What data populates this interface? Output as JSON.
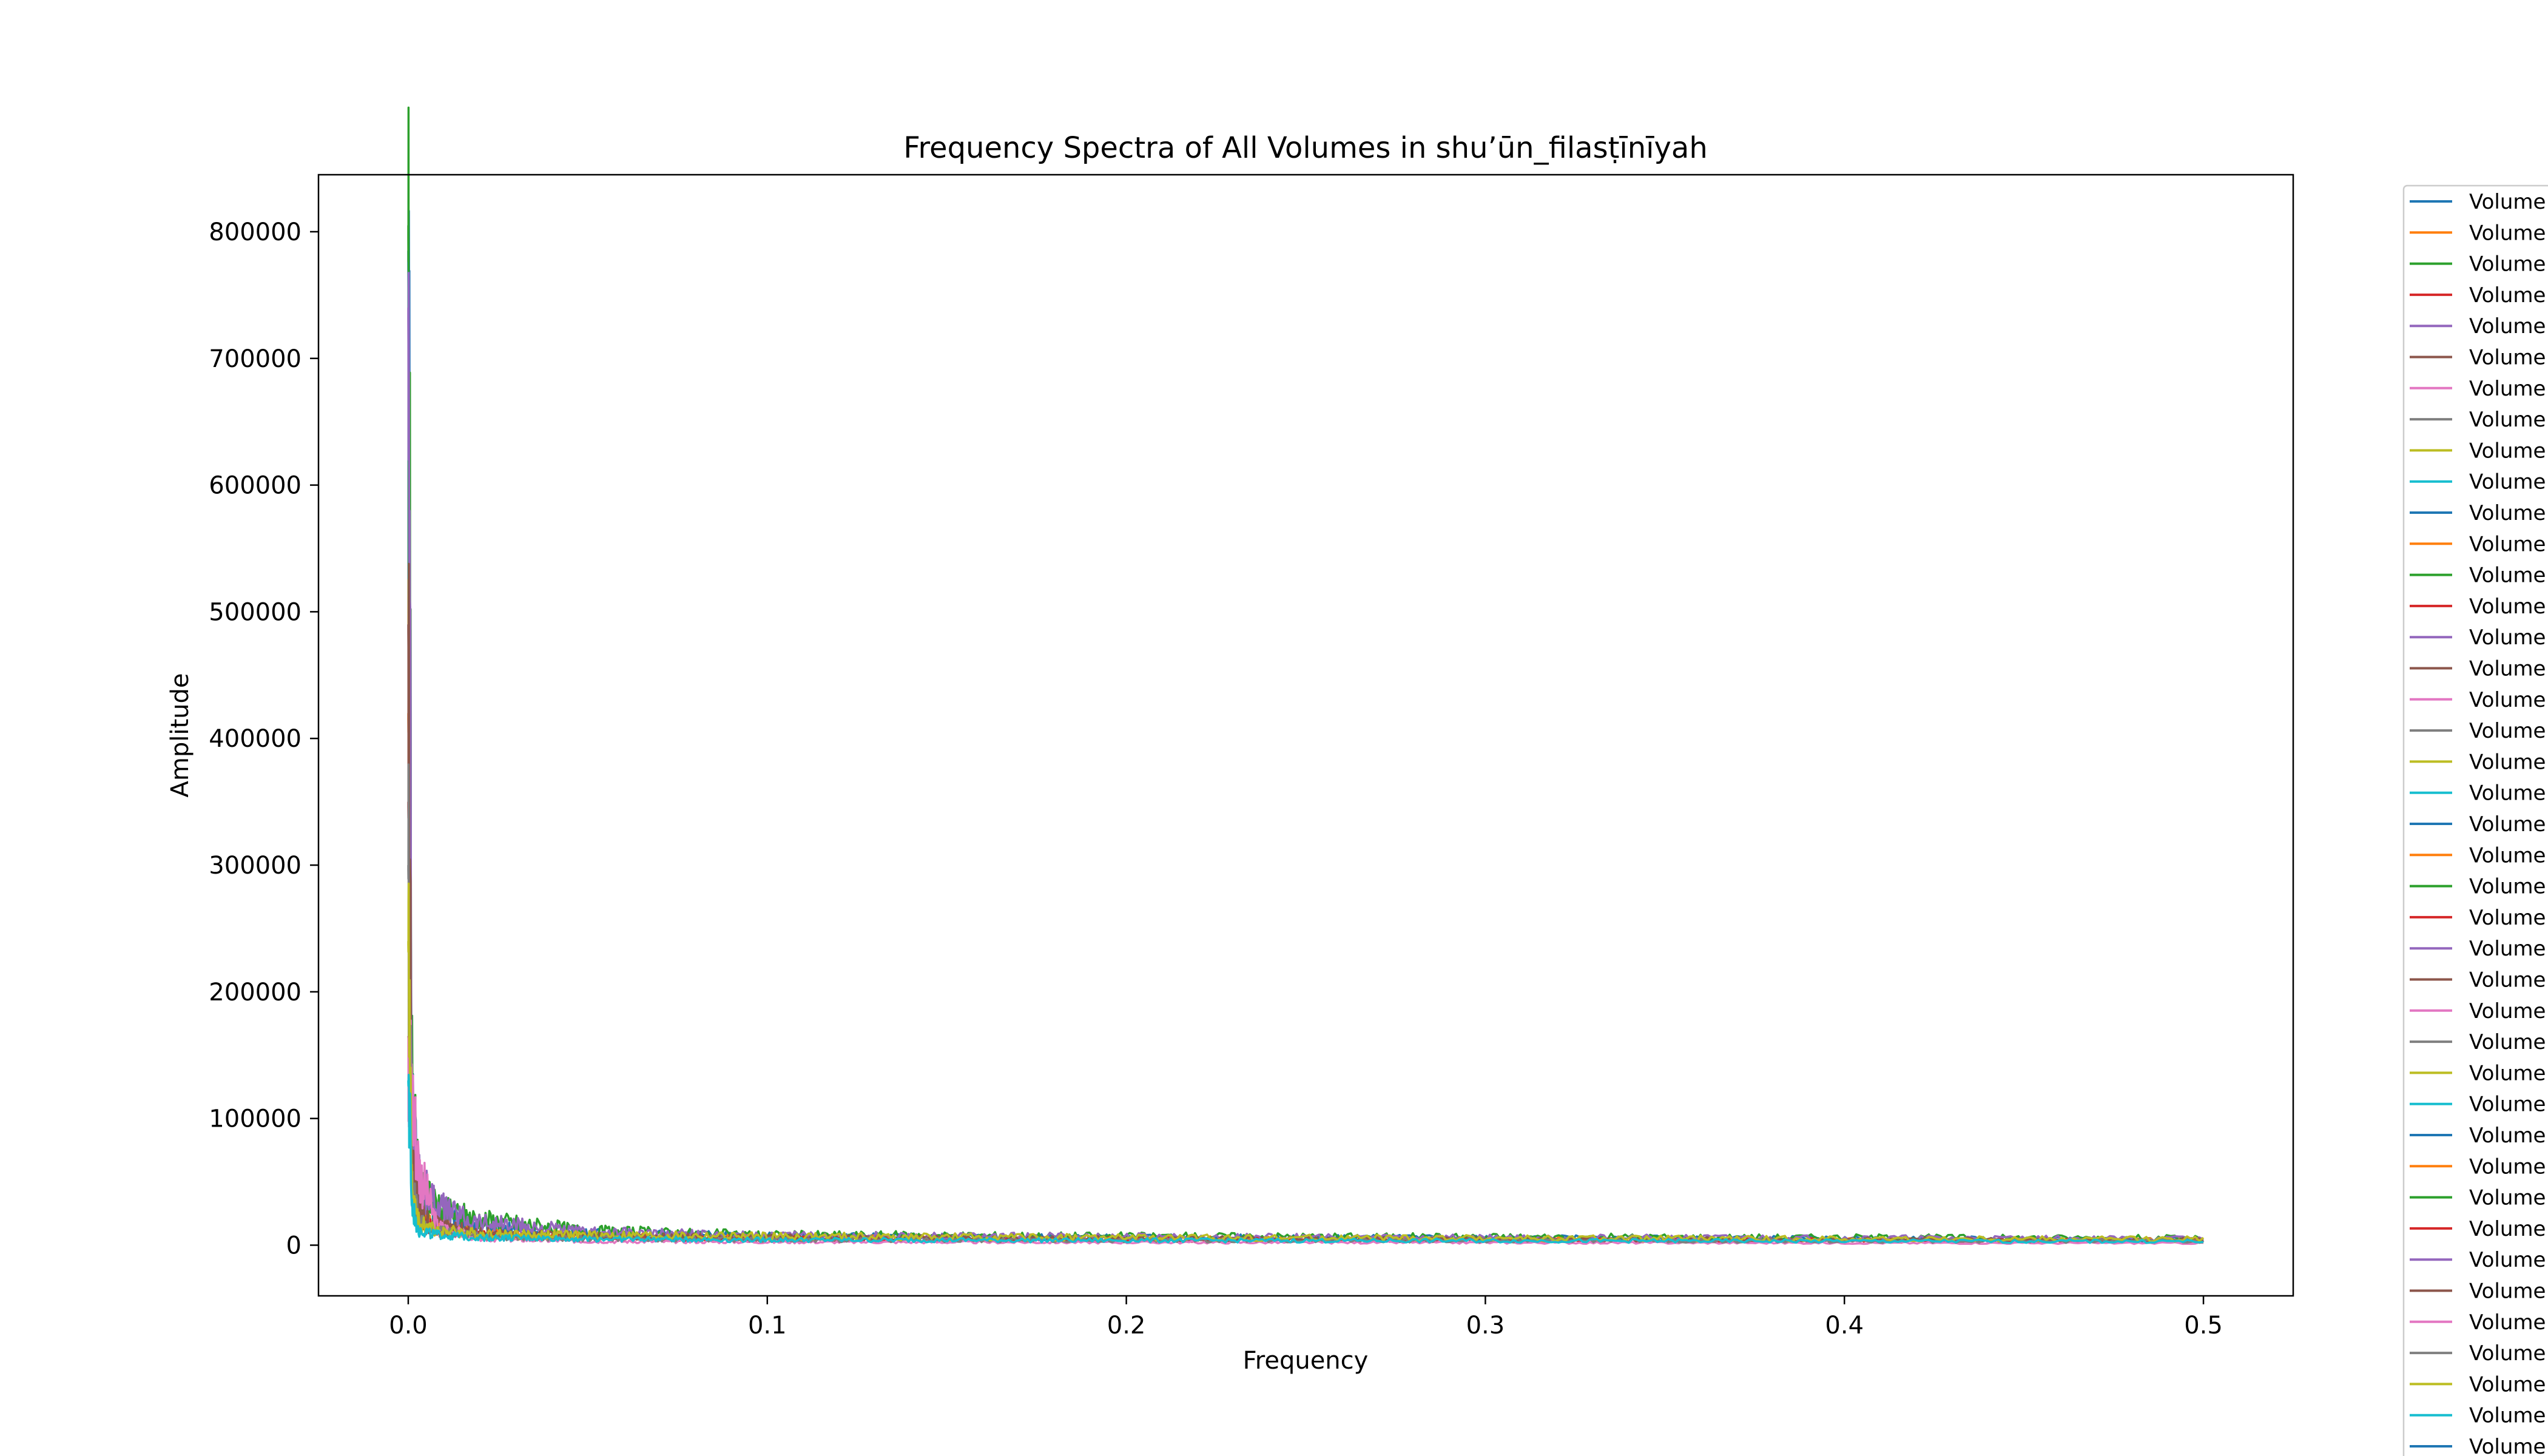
{
  "chart_data": {
    "type": "line",
    "title": "Frequency Spectra of All Volumes in shu’ūn_filasṭīnīyah",
    "xlabel": "Frequency",
    "ylabel": "Amplitude",
    "xlim": [
      -0.025,
      0.525
    ],
    "ylim": [
      -40000,
      845000
    ],
    "xticks": [
      0.0,
      0.1,
      0.2,
      0.3,
      0.4,
      0.5
    ],
    "xtick_labels": [
      "0.0",
      "0.1",
      "0.2",
      "0.3",
      "0.4",
      "0.5"
    ],
    "yticks": [
      0,
      100000,
      200000,
      300000,
      400000,
      500000,
      600000,
      700000,
      800000
    ],
    "ytick_labels": [
      "0",
      "100000",
      "200000",
      "300000",
      "400000",
      "500000",
      "600000",
      "700000",
      "800000"
    ],
    "grid": false,
    "legend_position": "outside-right",
    "legend_label": "Volume",
    "legend_visible_entries": 41,
    "palette": [
      "#1f77b4",
      "#ff7f0e",
      "#2ca02c",
      "#d62728",
      "#9467bd",
      "#8c564b",
      "#e377c2",
      "#7f7f7f",
      "#bcbd22",
      "#17becf"
    ],
    "series": [
      {
        "color": "#1f77b4",
        "x": [
          0.0,
          0.001,
          0.003,
          0.008,
          0.02,
          0.05,
          0.1,
          0.2,
          0.3,
          0.4,
          0.5
        ],
        "values": [
          785000,
          110000,
          38000,
          25000,
          14000,
          9000,
          7000,
          6000,
          5500,
          5000,
          4500
        ]
      },
      {
        "color": "#ff7f0e",
        "x": [
          0.0,
          0.001,
          0.003,
          0.008,
          0.02,
          0.05,
          0.1,
          0.2,
          0.3,
          0.4,
          0.5
        ],
        "values": [
          420000,
          60000,
          22000,
          15000,
          9000,
          7000,
          5500,
          5000,
          4500,
          4200,
          4000
        ]
      },
      {
        "color": "#2ca02c",
        "x": [
          0.0,
          0.001,
          0.003,
          0.008,
          0.02,
          0.05,
          0.1,
          0.2,
          0.3,
          0.4,
          0.5
        ],
        "values": [
          805000,
          130000,
          45000,
          28000,
          20000,
          11000,
          8000,
          7000,
          6500,
          6000,
          5500
        ]
      },
      {
        "color": "#d62728",
        "x": [
          0.0,
          0.001,
          0.003,
          0.008,
          0.02,
          0.05,
          0.1,
          0.2,
          0.3,
          0.4,
          0.5
        ],
        "values": [
          350000,
          50000,
          20000,
          12000,
          8000,
          6000,
          5000,
          4500,
          4000,
          3800,
          3500
        ]
      },
      {
        "color": "#9467bd",
        "x": [
          0.0,
          0.001,
          0.003,
          0.008,
          0.02,
          0.05,
          0.1,
          0.2,
          0.3,
          0.4,
          0.5
        ],
        "values": [
          740000,
          95000,
          52000,
          30000,
          18000,
          10000,
          7500,
          6500,
          6000,
          5500,
          5000
        ]
      },
      {
        "color": "#8c564b",
        "x": [
          0.0,
          0.001,
          0.003,
          0.008,
          0.02,
          0.05,
          0.1,
          0.2,
          0.3,
          0.4,
          0.5
        ],
        "values": [
          490000,
          70000,
          25000,
          16000,
          10000,
          7000,
          6000,
          5000,
          4500,
          4200,
          4000
        ]
      },
      {
        "color": "#e377c2",
        "x": [
          0.0,
          0.001,
          0.003,
          0.008,
          0.02,
          0.05,
          0.1,
          0.2,
          0.3,
          0.4,
          0.5
        ],
        "values": [
          165000,
          120000,
          60000,
          15000,
          5000,
          3000,
          2500,
          2200,
          2000,
          1800,
          1600
        ]
      },
      {
        "color": "#7f7f7f",
        "x": [
          0.0,
          0.001,
          0.003,
          0.008,
          0.02,
          0.05,
          0.1,
          0.2,
          0.3,
          0.4,
          0.5
        ],
        "values": [
          300000,
          45000,
          18000,
          11000,
          7000,
          5500,
          4500,
          4000,
          3800,
          3500,
          3200
        ]
      },
      {
        "color": "#bcbd22",
        "x": [
          0.0,
          0.001,
          0.003,
          0.008,
          0.02,
          0.05,
          0.1,
          0.2,
          0.3,
          0.4,
          0.5
        ],
        "values": [
          240000,
          40000,
          17000,
          12000,
          9000,
          8000,
          7000,
          6000,
          5500,
          5000,
          4800
        ]
      },
      {
        "color": "#17becf",
        "x": [
          0.0,
          0.001,
          0.003,
          0.008,
          0.02,
          0.05,
          0.1,
          0.2,
          0.3,
          0.4,
          0.5
        ],
        "values": [
          130000,
          30000,
          12000,
          8000,
          6000,
          5000,
          4200,
          3800,
          3500,
          3200,
          3000
        ]
      }
    ]
  }
}
